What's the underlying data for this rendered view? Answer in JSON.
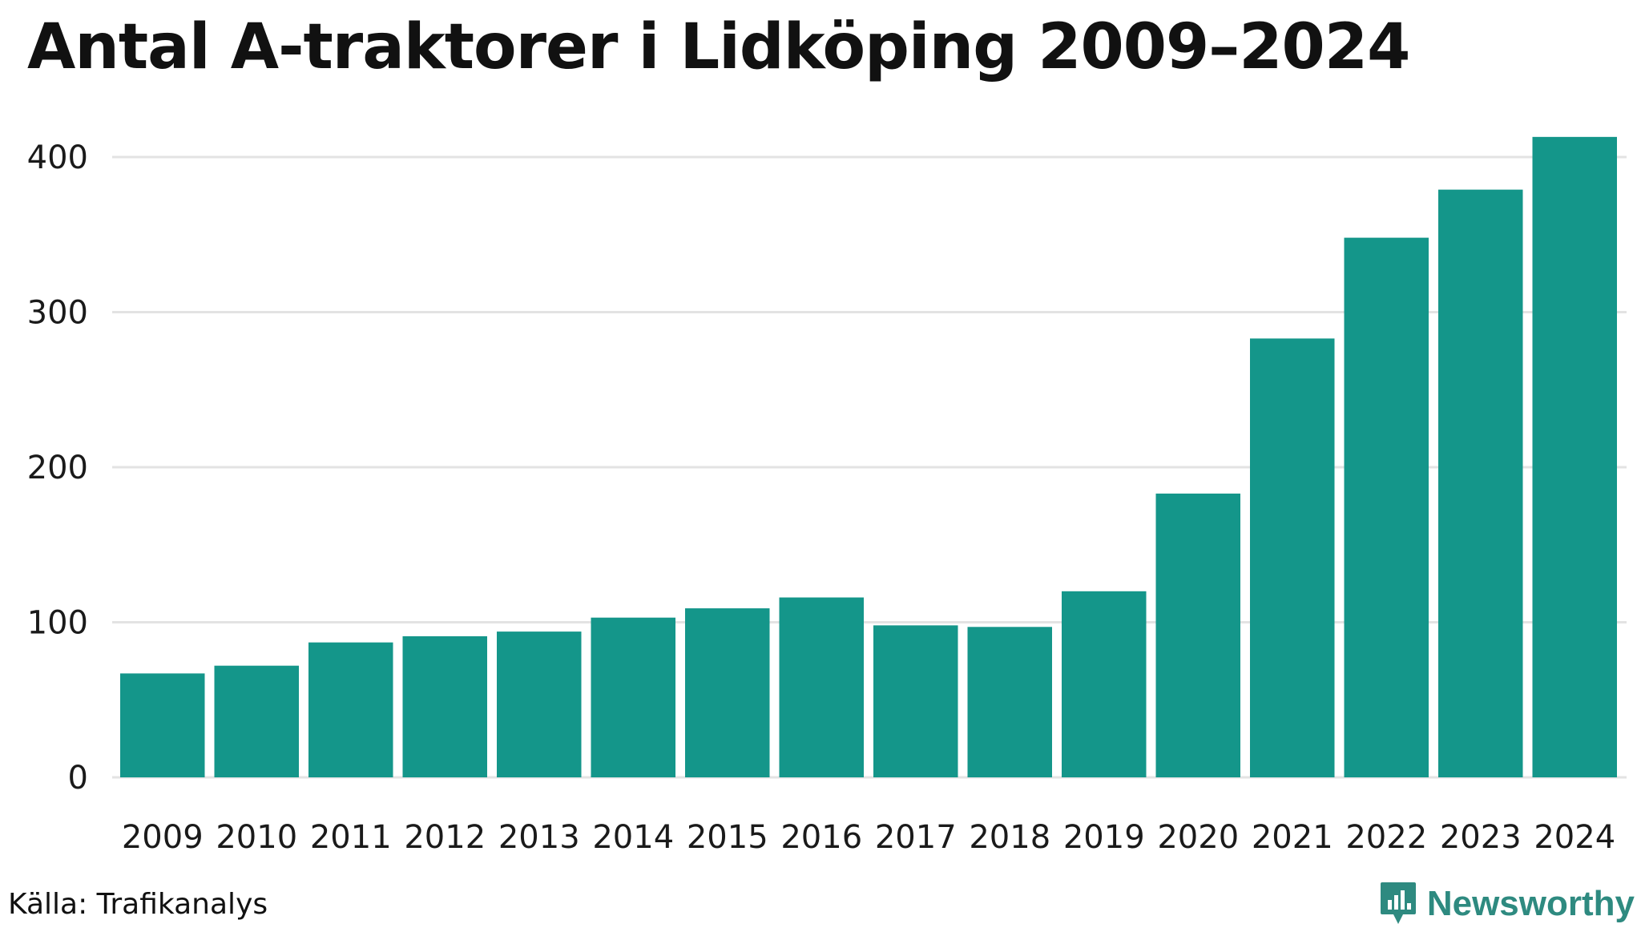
{
  "chart_data": {
    "type": "bar",
    "title": "Antal A-traktorer i Lidköping 2009–2024",
    "categories": [
      "2009",
      "2010",
      "2011",
      "2012",
      "2013",
      "2014",
      "2015",
      "2016",
      "2017",
      "2018",
      "2019",
      "2020",
      "2021",
      "2022",
      "2023",
      "2024"
    ],
    "values": [
      67,
      72,
      87,
      91,
      94,
      103,
      109,
      116,
      98,
      97,
      120,
      183,
      283,
      348,
      379,
      413
    ],
    "ylim": [
      0,
      420
    ],
    "yticks": [
      0,
      100,
      200,
      300,
      400
    ],
    "grid": true,
    "bar_color": "#14968a",
    "grid_color": "#e3e3e3"
  },
  "footer": {
    "source": "Källa: Trafikanalys",
    "brand": "Newsworthy",
    "brand_color": "#2e8a80"
  }
}
